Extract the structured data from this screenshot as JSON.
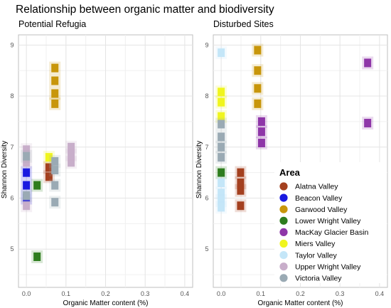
{
  "title": "Relationship between organic matter and biodiversity",
  "chart_data": [
    {
      "type": "scatter",
      "title": "Potential Refugia",
      "xlabel": "Organic Matter content (%)",
      "ylabel": "Shannon Diversity",
      "xlim": [
        -0.02,
        0.42
      ],
      "ylim": [
        4.25,
        9.2
      ],
      "xticks": [
        "0.0",
        "0.1",
        "0.2",
        "0.3",
        "0.4"
      ],
      "xtick_values": [
        0,
        0.1,
        0.2,
        0.3,
        0.4
      ],
      "yticks": [
        "5",
        "6",
        "7",
        "8",
        "9"
      ],
      "ytick_values": [
        5,
        6,
        7,
        8,
        9
      ],
      "grid": true,
      "series": [
        {
          "name": "Alatna Valley",
          "points": [
            [
              0.057,
              6.42
            ],
            [
              0.057,
              6.6
            ]
          ]
        },
        {
          "name": "Beacon Valley",
          "points": [
            [
              0.0,
              6.0
            ],
            [
              0.0,
              6.25
            ],
            [
              0.0,
              6.5
            ]
          ]
        },
        {
          "name": "Garwood Valley",
          "points": [
            [
              0.072,
              7.85
            ],
            [
              0.072,
              8.05
            ],
            [
              0.072,
              8.3
            ],
            [
              0.072,
              8.55
            ]
          ]
        },
        {
          "name": "Lower Wright Valley",
          "points": [
            [
              0.027,
              6.25
            ],
            [
              0.027,
              4.85
            ]
          ]
        },
        {
          "name": "MacKay Glacier Basin",
          "points": []
        },
        {
          "name": "Miers Valley",
          "points": [
            [
              0.057,
              6.8
            ]
          ]
        },
        {
          "name": "Taylor Valley",
          "points": []
        },
        {
          "name": "Upper Wright Valley",
          "points": [
            [
              0.0,
              6.95
            ],
            [
              0.0,
              6.7
            ],
            [
              0.0,
              5.85
            ],
            [
              0.113,
              7.0
            ],
            [
              0.113,
              6.7
            ],
            [
              0.113,
              6.85
            ]
          ]
        },
        {
          "name": "Victoria Valley",
          "points": [
            [
              0.0,
              6.82
            ],
            [
              0.0,
              6.05
            ],
            [
              0.072,
              6.55
            ],
            [
              0.072,
              6.25
            ],
            [
              0.072,
              5.92
            ],
            [
              0.072,
              6.72
            ]
          ]
        }
      ]
    },
    {
      "type": "scatter",
      "title": "Disturbed Sites",
      "xlabel": "Organic Matter content (%)",
      "ylabel": "Shannon Diversity",
      "xlim": [
        -0.02,
        0.42
      ],
      "ylim": [
        4.25,
        9.2
      ],
      "xticks": [
        "0.0",
        "0.1",
        "0.2",
        "0.3",
        "0.4"
      ],
      "xtick_values": [
        0,
        0.1,
        0.2,
        0.3,
        0.4
      ],
      "yticks": [
        "5",
        "6",
        "7",
        "8",
        "9"
      ],
      "ytick_values": [
        5,
        6,
        7,
        8,
        9
      ],
      "grid": true,
      "legend": {
        "title": "Area",
        "position": "bottom-right",
        "items": [
          {
            "label": "Alatna Valley",
            "color": "#a4401f"
          },
          {
            "label": "Beacon Valley",
            "color": "#1a1ae0"
          },
          {
            "label": "Garwood Valley",
            "color": "#c8960a"
          },
          {
            "label": "Lower Wright Valley",
            "color": "#2e7d1e"
          },
          {
            "label": "MacKay Glacier Basin",
            "color": "#8e36a8"
          },
          {
            "label": "Miers Valley",
            "color": "#f0f51e"
          },
          {
            "label": "Taylor Valley",
            "color": "#c4e6f8"
          },
          {
            "label": "Upper Wright Valley",
            "color": "#c8aeca"
          },
          {
            "label": "Victoria Valley",
            "color": "#9aaab4"
          }
        ]
      },
      "series": [
        {
          "name": "Alatna Valley",
          "points": [
            [
              0.049,
              6.5
            ],
            [
              0.049,
              6.3
            ],
            [
              0.049,
              6.15
            ],
            [
              0.049,
              5.85
            ]
          ]
        },
        {
          "name": "Beacon Valley",
          "points": []
        },
        {
          "name": "Garwood Valley",
          "points": [
            [
              0.092,
              8.9
            ],
            [
              0.092,
              8.5
            ],
            [
              0.092,
              8.15
            ],
            [
              0.092,
              7.85
            ]
          ]
        },
        {
          "name": "Lower Wright Valley",
          "points": [
            [
              0.0,
              6.5
            ]
          ]
        },
        {
          "name": "MacKay Glacier Basin",
          "points": [
            [
              0.102,
              7.5
            ],
            [
              0.102,
              7.3
            ],
            [
              0.102,
              7.08
            ],
            [
              0.37,
              8.65
            ],
            [
              0.37,
              7.47
            ]
          ]
        },
        {
          "name": "Miers Valley",
          "points": [
            [
              0.0,
              8.08
            ],
            [
              0.0,
              7.88
            ],
            [
              0.0,
              7.6
            ]
          ]
        },
        {
          "name": "Taylor Valley",
          "points": [
            [
              0.0,
              8.85
            ],
            [
              0.0,
              6.3
            ],
            [
              0.0,
              6.1
            ],
            [
              0.0,
              5.95
            ],
            [
              0.0,
              5.82
            ]
          ]
        },
        {
          "name": "Upper Wright Valley",
          "points": []
        },
        {
          "name": "Victoria Valley",
          "points": [
            [
              0.0,
              7.45
            ],
            [
              0.0,
              7.2
            ],
            [
              0.0,
              7.0
            ],
            [
              0.0,
              6.8
            ]
          ]
        }
      ]
    }
  ]
}
